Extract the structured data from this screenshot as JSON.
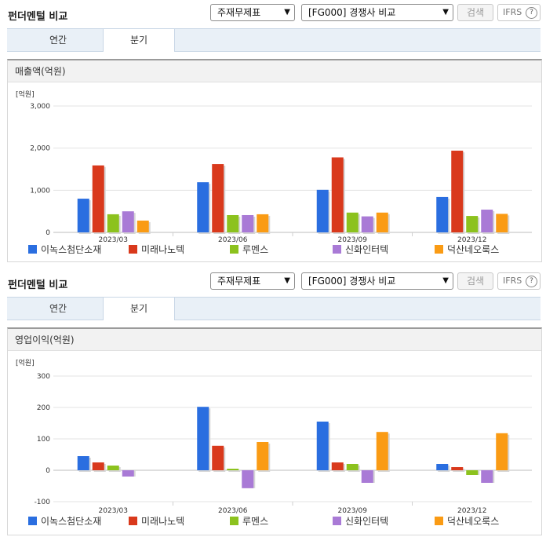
{
  "header": {
    "title": "펀더멘털 비교",
    "select_metric": "주재무제표",
    "select_peer": "[FG000] 경쟁사 비교",
    "search_label": "검색",
    "ifrs_label": "IFRS",
    "help_glyph": "?"
  },
  "tabs": [
    {
      "label": "연간",
      "active": false
    },
    {
      "label": "분기",
      "active": true
    }
  ],
  "colors": [
    "#2a6ee0",
    "#d9391c",
    "#8cc21e",
    "#a97ad6",
    "#fa9b14"
  ],
  "legend": [
    "이녹스첨단소재",
    "미래나노텍",
    "루멘스",
    "신화인터텍",
    "덕산네오룩스"
  ],
  "chart_data": [
    {
      "type": "bar",
      "title": "매출액(억원)",
      "unit": "[억원]",
      "categories": [
        "2023/03",
        "2023/06",
        "2023/09",
        "2023/12"
      ],
      "yticks": [
        "3,000",
        "2,000",
        "1,000",
        "0"
      ],
      "ylim": [
        0,
        3000
      ],
      "series": [
        {
          "name": "이녹스첨단소재",
          "values": [
            800,
            1190,
            1010,
            840
          ]
        },
        {
          "name": "미래나노텍",
          "values": [
            1590,
            1620,
            1780,
            1940
          ]
        },
        {
          "name": "루멘스",
          "values": [
            430,
            410,
            470,
            390
          ]
        },
        {
          "name": "신화인터텍",
          "values": [
            500,
            410,
            380,
            540
          ]
        },
        {
          "name": "덕산네오룩스",
          "values": [
            280,
            430,
            470,
            440
          ]
        }
      ],
      "grid": true,
      "legend_position": "bottom"
    },
    {
      "type": "bar",
      "title": "영업이익(억원)",
      "unit": "[억원]",
      "categories": [
        "2023/03",
        "2023/06",
        "2023/09",
        "2023/12"
      ],
      "yticks": [
        "300",
        "200",
        "100",
        "0",
        "-100"
      ],
      "ylim": [
        -100,
        300
      ],
      "series": [
        {
          "name": "이녹스첨단소재",
          "values": [
            45,
            202,
            155,
            20
          ]
        },
        {
          "name": "미래나노텍",
          "values": [
            25,
            78,
            25,
            10
          ]
        },
        {
          "name": "루멘스",
          "values": [
            15,
            5,
            20,
            -15
          ]
        },
        {
          "name": "신화인터텍",
          "values": [
            -20,
            -57,
            -40,
            -40
          ]
        },
        {
          "name": "덕산네오룩스",
          "values": [
            0,
            90,
            122,
            118
          ]
        }
      ],
      "grid": true,
      "legend_position": "bottom"
    }
  ]
}
